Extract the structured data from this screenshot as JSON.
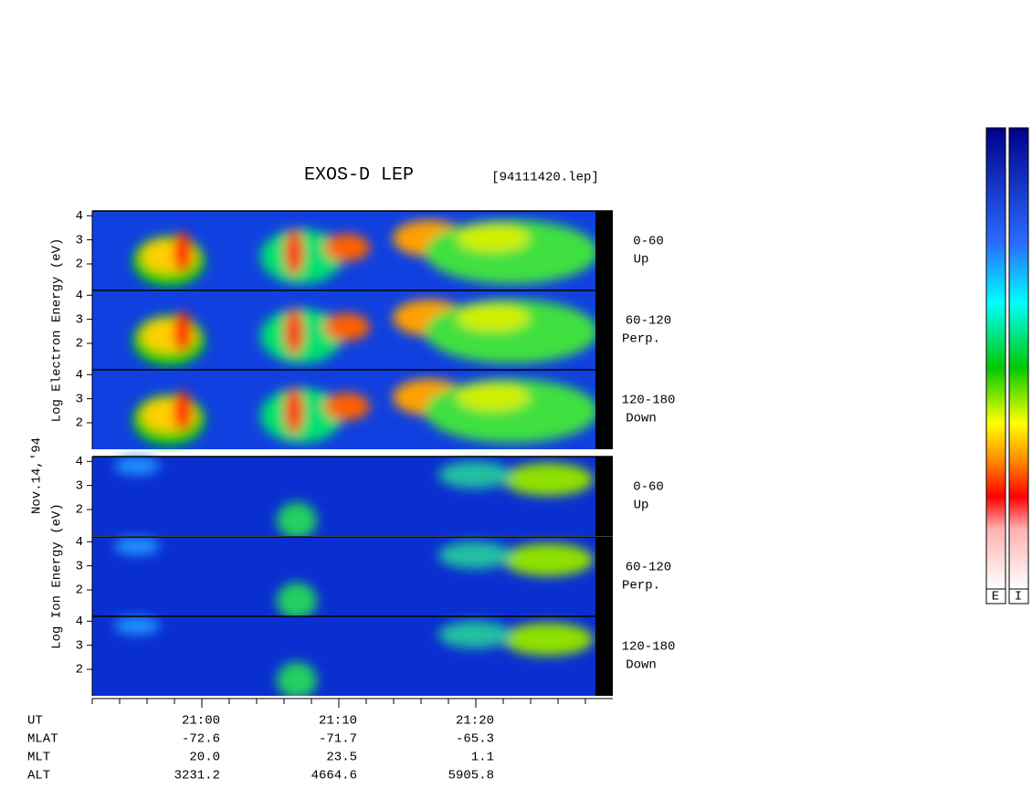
{
  "chart_data": {
    "type": "spectrogram",
    "title": "EXOS-D LEP",
    "file": "[94111420.lep]",
    "date": "Nov.14,'94",
    "groups": [
      {
        "ylabel": "Log Electron Energy (eV)",
        "panels": [
          {
            "range": "0-60",
            "dir": "Up"
          },
          {
            "range": "60-120",
            "dir": "Perp."
          },
          {
            "range": "120-180",
            "dir": "Down"
          }
        ]
      },
      {
        "ylabel": "Log Ion Energy (eV)",
        "panels": [
          {
            "range": "0-60",
            "dir": "Up"
          },
          {
            "range": "60-120",
            "dir": "Perp."
          },
          {
            "range": "120-180",
            "dir": "Down"
          }
        ]
      }
    ],
    "ylim": [
      0.9,
      4.2
    ],
    "yticks": [
      2,
      3,
      4
    ],
    "xlabel": "UT",
    "xlim": [
      52,
      90
    ],
    "xticks": [
      {
        "value": 60,
        "label": "21:00"
      },
      {
        "value": 70,
        "label": "21:10"
      },
      {
        "value": 80,
        "label": "21:20"
      }
    ],
    "xminorticks": [
      52,
      54,
      56,
      58,
      62,
      64,
      66,
      68,
      72,
      74,
      76,
      78,
      82,
      84,
      86,
      88
    ],
    "orbit": [
      {
        "label": "MLAT",
        "values": [
          "-72.6",
          "-71.7",
          "-65.3"
        ]
      },
      {
        "label": "MLT",
        "values": [
          "20.0",
          "23.5",
          "1.1"
        ]
      },
      {
        "label": "ALT",
        "values": [
          "3231.2",
          "4664.6",
          "5905.8"
        ]
      }
    ],
    "colorbar_labels": [
      "E",
      "I"
    ]
  }
}
